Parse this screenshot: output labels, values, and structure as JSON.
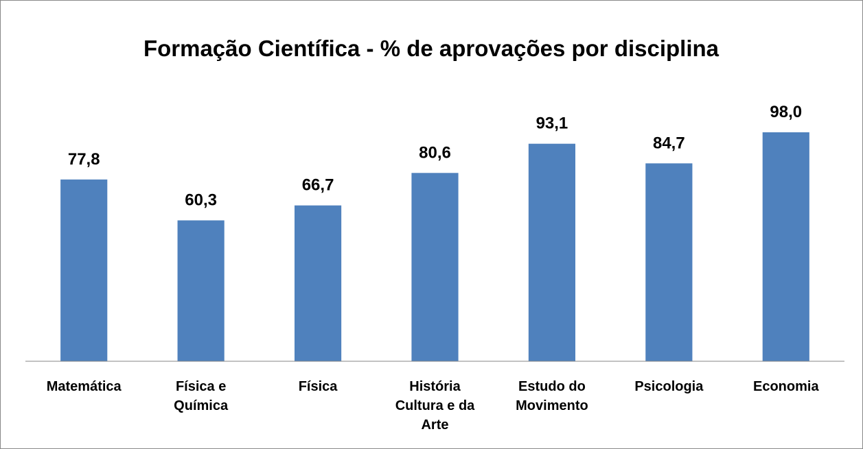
{
  "chart_data": {
    "type": "bar",
    "title": "Formação Científica - % de aprovações por disciplina",
    "categories": [
      "Matemática",
      "Física e Química",
      "Física",
      "História Cultura e da Arte",
      "Estudo do Movimento",
      "Psicologia",
      "Economia"
    ],
    "values": [
      77.8,
      60.3,
      66.7,
      80.6,
      93.1,
      84.7,
      98.0
    ],
    "value_labels": [
      "77,8",
      "60,3",
      "66,7",
      "80,6",
      "93,1",
      "84,7",
      "98,0"
    ],
    "color": "#4f81bd",
    "ylim": [
      0,
      120
    ],
    "grid": false
  }
}
